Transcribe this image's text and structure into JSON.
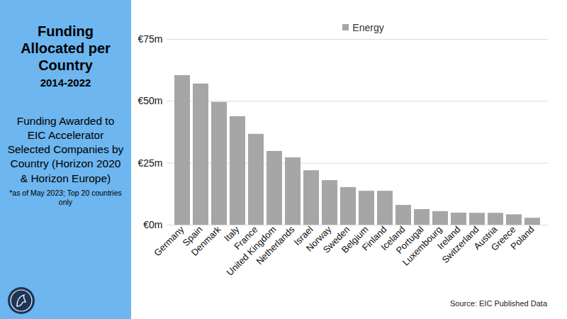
{
  "chart_data": {
    "type": "bar",
    "title": "Funding Allocated per Country",
    "subtitle": "2014-2022",
    "annotations": [
      "Funding Awarded to EIC Accelerator Selected Companies by Country (Horizon 2020 & Horizon Europe)",
      "*as of May 2023; Top 20 countries only"
    ],
    "source": "Source: EIC Published Data",
    "categories": [
      "Germany",
      "Spain",
      "Denmark",
      "Italy",
      "France",
      "United Kingdom",
      "Netherlands",
      "Israel",
      "Norway",
      "Sweden",
      "Belgium",
      "Finland",
      "Iceland",
      "Portugal",
      "Luxembourg",
      "Ireland",
      "Switzerland",
      "Austria",
      "Greece",
      "Poland"
    ],
    "series": [
      {
        "name": "Energy",
        "color": "#a6a6a6",
        "values": [
          60.4,
          57,
          49.6,
          43.8,
          36.7,
          29.8,
          27.2,
          22,
          18,
          15.2,
          13.7,
          13.7,
          8,
          6.3,
          5.5,
          4.9,
          4.8,
          4.8,
          4.2,
          2.8
        ]
      }
    ],
    "ylim": [
      0,
      75
    ],
    "yticks": [
      {
        "value": 0,
        "label": "€0m"
      },
      {
        "value": 25,
        "label": "€25m"
      },
      {
        "value": 50,
        "label": "€50m"
      },
      {
        "value": 75,
        "label": "€75m"
      }
    ],
    "grid": true,
    "legend": "top"
  }
}
